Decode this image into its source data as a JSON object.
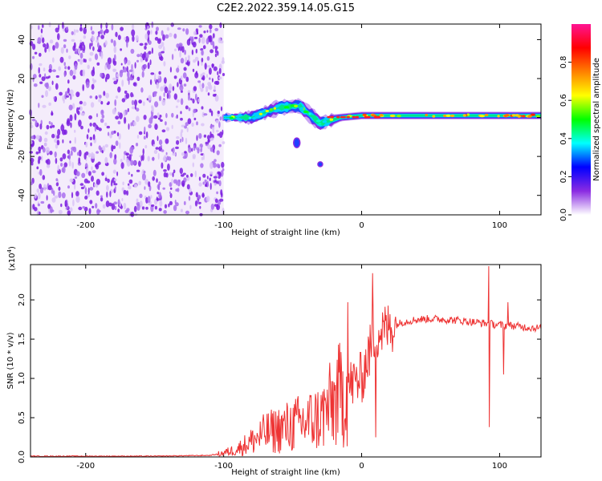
{
  "title": "C2E2.2022.359.14.05.G15",
  "chart_data": [
    {
      "type": "heatmap",
      "xlabel": "Height of straight line (km)",
      "ylabel": "Frequency (Hz)",
      "xlim": [
        -240,
        130
      ],
      "ylim": [
        -50,
        48
      ],
      "x_ticks": [
        -200,
        -100,
        0,
        100
      ],
      "y_ticks": [
        -40,
        -20,
        0,
        20,
        40
      ],
      "colorbar": {
        "label": "Normalized spectral amplitude",
        "range": [
          0,
          1
        ],
        "ticks": [
          0.0,
          0.2,
          0.4,
          0.6,
          0.8
        ],
        "colormap": [
          "#ffffff",
          "#8a2be2",
          "#0000ff",
          "#00ffff",
          "#00ff00",
          "#ffff00",
          "#ff8000",
          "#ff0000",
          "#ff1493"
        ]
      },
      "features": {
        "noise_region_x": [
          -240,
          -100
        ],
        "signal_band": [
          {
            "x": -100,
            "f": 0,
            "halfwidth": 2
          },
          {
            "x": -80,
            "f": 0,
            "halfwidth": 3
          },
          {
            "x": -60,
            "f": 5,
            "halfwidth": 4
          },
          {
            "x": -45,
            "f": 6,
            "halfwidth": 4
          },
          {
            "x": -30,
            "f": -3,
            "halfwidth": 4
          },
          {
            "x": -15,
            "f": 0,
            "halfwidth": 2
          },
          {
            "x": 0,
            "f": 1,
            "halfwidth": 2
          },
          {
            "x": 130,
            "f": 1,
            "halfwidth": 2
          }
        ],
        "outliers": [
          {
            "x": -47,
            "f": -13
          },
          {
            "x": -30,
            "f": -24
          }
        ]
      }
    },
    {
      "type": "line",
      "xlabel": "Height of straight line (km)",
      "ylabel": "SNR (10 * v/v)",
      "y_exponent_label": "(x10",
      "y_exponent": "4",
      "y_exponent_close": ")",
      "xlim": [
        -240,
        130
      ],
      "ylim": [
        0,
        2.45
      ],
      "x_ticks": [
        -200,
        -100,
        0,
        100
      ],
      "y_ticks": [
        0.0,
        0.5,
        1.0,
        1.5,
        2.0
      ],
      "line_color": "#ee3333",
      "series": [
        {
          "x": [
            -240,
            -200,
            -150,
            -110,
            -100,
            -90,
            -80,
            -70,
            -60,
            -50,
            -40,
            -30,
            -20,
            -10,
            0,
            5,
            10,
            20,
            30,
            40,
            50,
            60,
            70,
            80,
            90,
            100,
            110,
            120,
            130
          ],
          "y": [
            0.01,
            0.01,
            0.01,
            0.02,
            0.05,
            0.1,
            0.2,
            0.3,
            0.35,
            0.4,
            0.45,
            0.5,
            0.7,
            0.9,
            1.0,
            1.3,
            1.55,
            1.65,
            1.72,
            1.75,
            1.76,
            1.75,
            1.74,
            1.72,
            1.7,
            1.68,
            1.67,
            1.65,
            1.64
          ]
        }
      ],
      "spikes": [
        {
          "x": -10,
          "y": 1.97
        },
        {
          "x": 8,
          "y": 2.34
        },
        {
          "x": 10,
          "y": 0.25
        },
        {
          "x": 92,
          "y": 2.43
        },
        {
          "x": 92.5,
          "y": 0.38
        },
        {
          "x": 103,
          "y": 1.05
        },
        {
          "x": 106,
          "y": 1.97
        }
      ]
    }
  ]
}
